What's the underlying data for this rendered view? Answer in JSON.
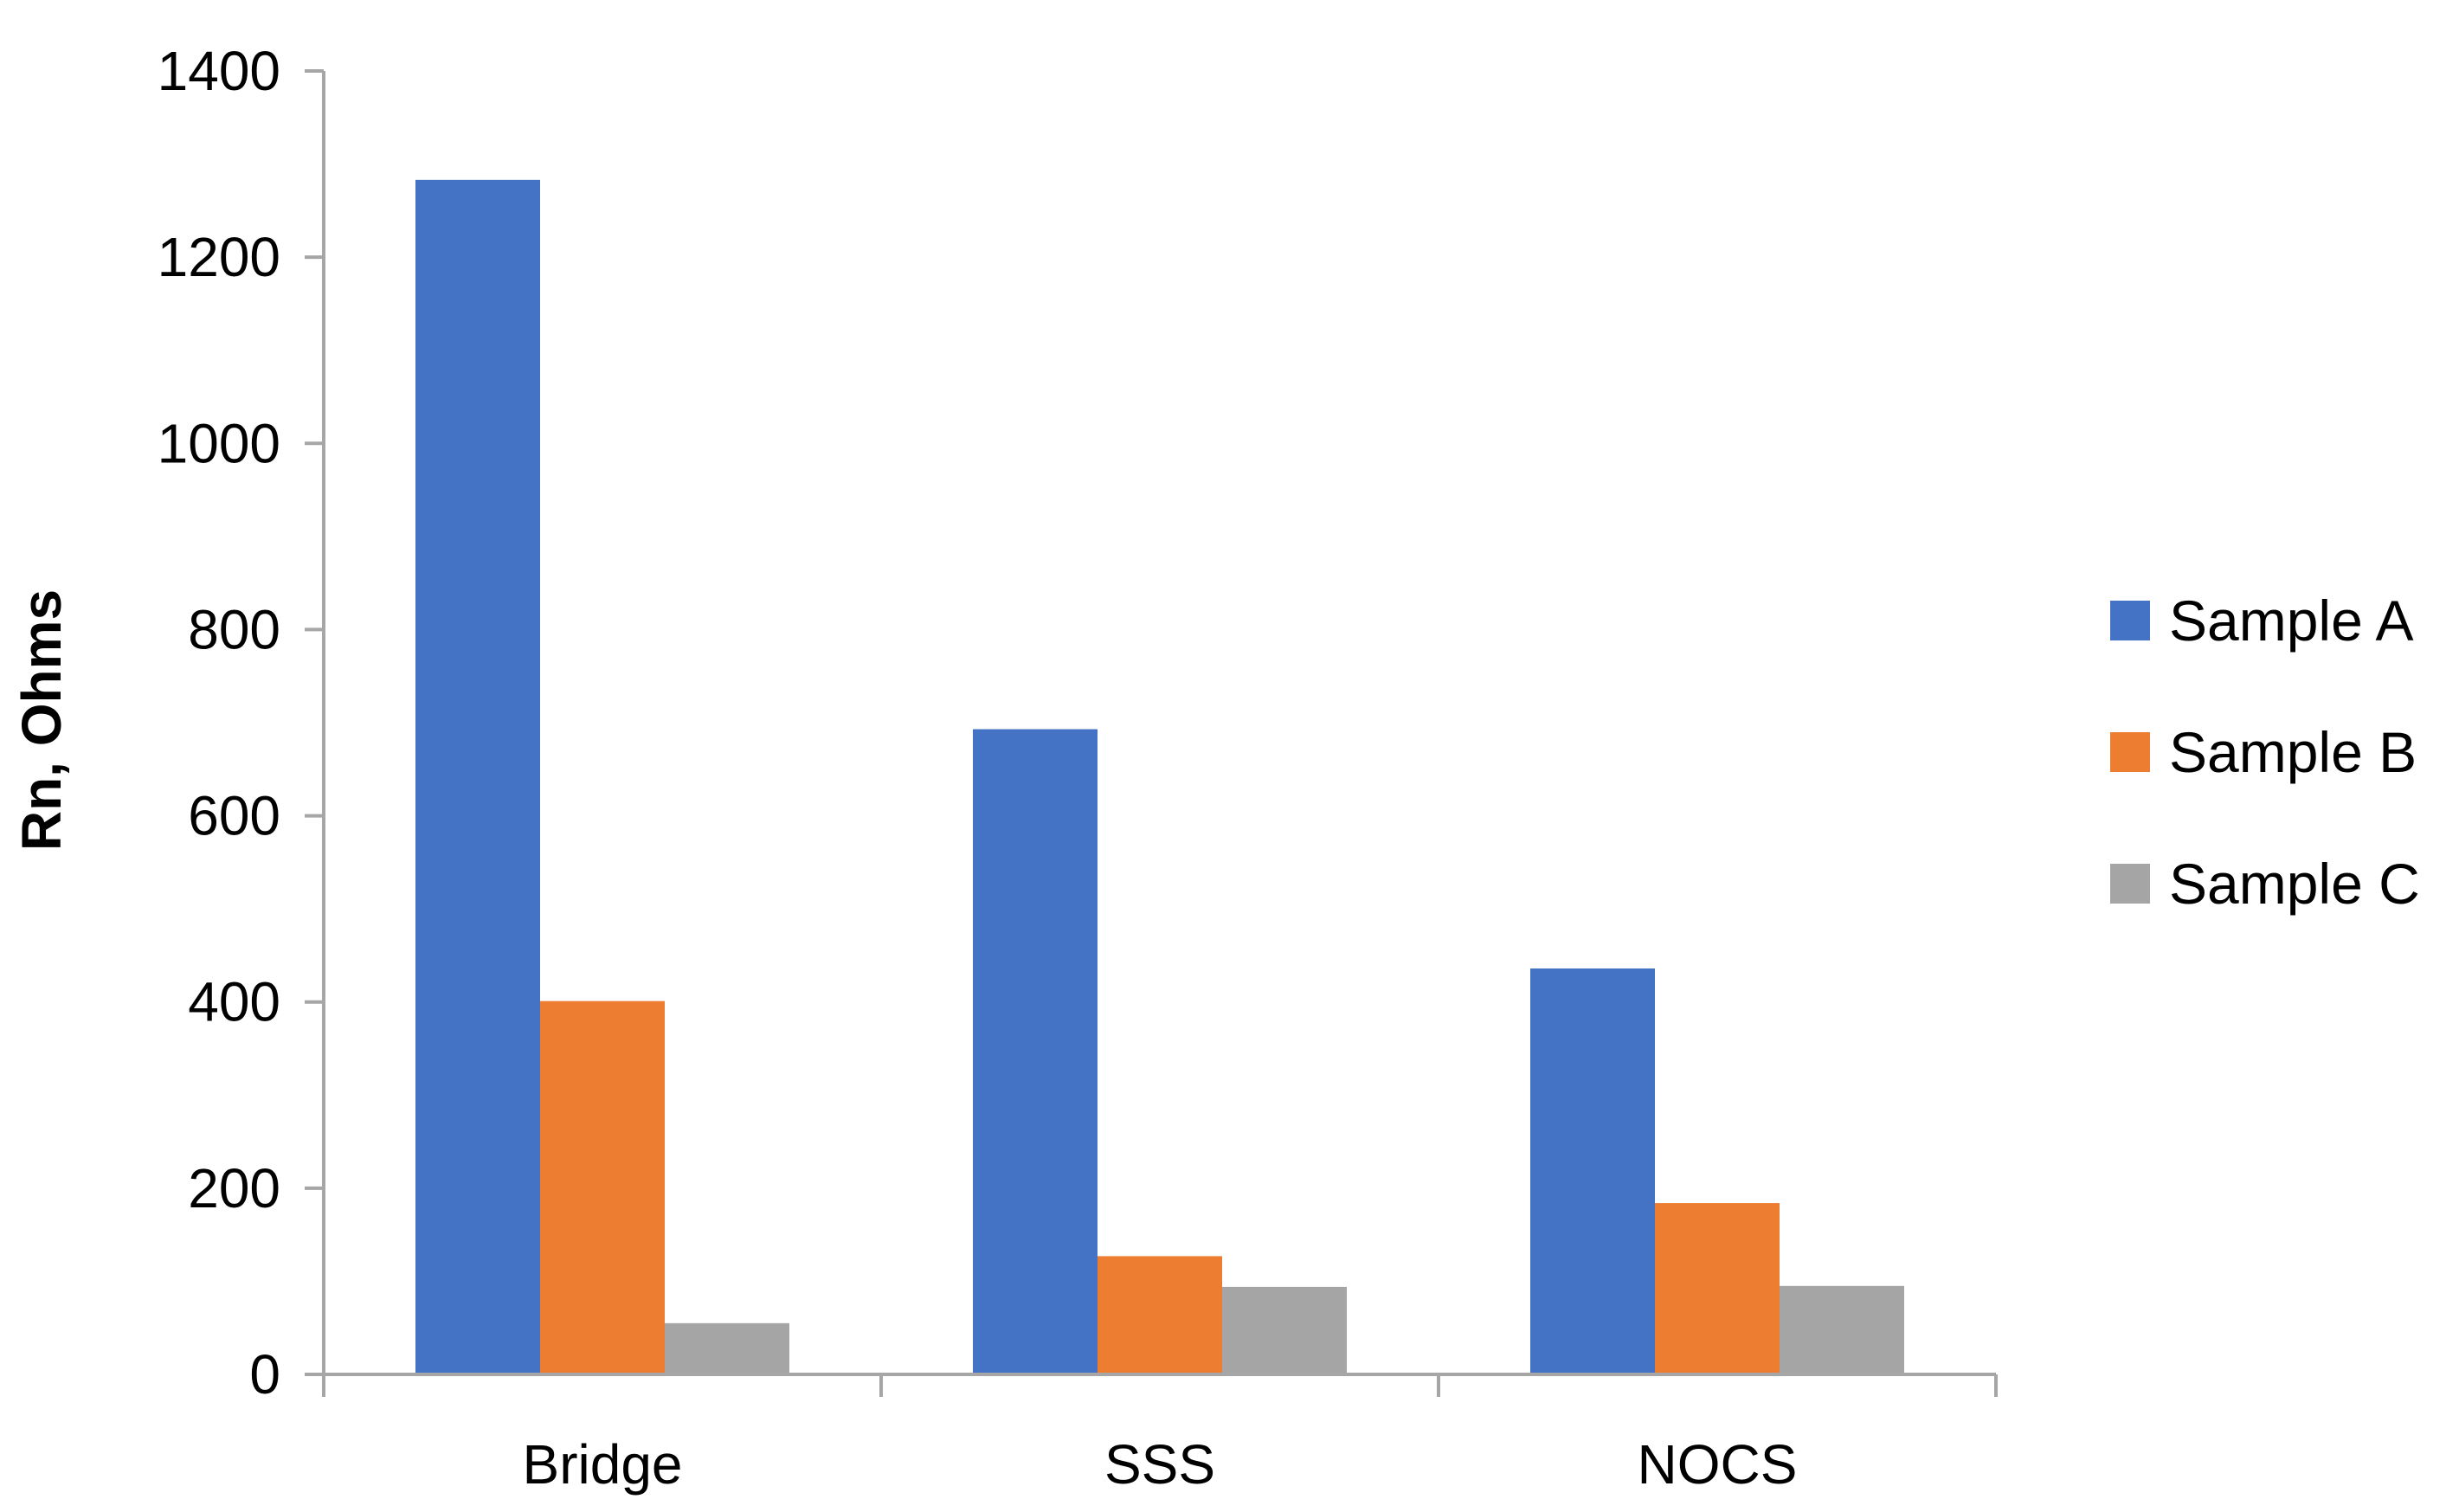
{
  "chart_data": {
    "type": "bar",
    "title": "",
    "xlabel": "",
    "ylabel": "Rn, Ohms",
    "categories": [
      "Bridge",
      "SSS",
      "NOCS"
    ],
    "series": [
      {
        "name": "Sample A",
        "color": "#4472C4",
        "values": [
          1283,
          693,
          436
        ]
      },
      {
        "name": "Sample B",
        "color": "#ED7D31",
        "values": [
          401,
          127,
          184
        ]
      },
      {
        "name": "Sample C",
        "color": "#A5A5A5",
        "values": [
          55,
          94,
          95
        ]
      }
    ],
    "ylim": [
      0,
      1400
    ],
    "yticks": [
      0,
      200,
      400,
      600,
      800,
      1000,
      1200,
      1400
    ],
    "grid": false,
    "legend_position": "right"
  }
}
